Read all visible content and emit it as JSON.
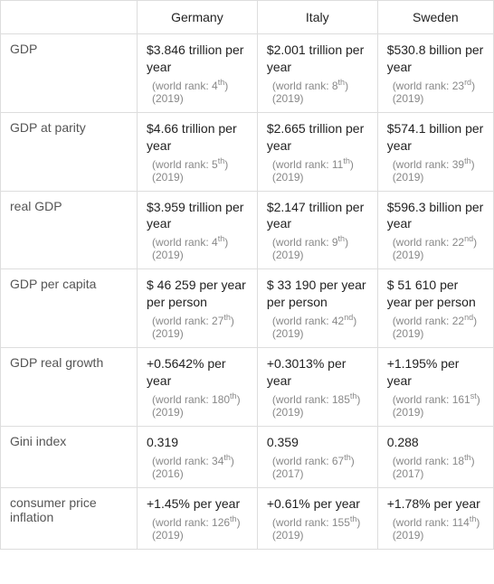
{
  "countries": [
    "Germany",
    "Italy",
    "Sweden"
  ],
  "rows": [
    {
      "label": "GDP",
      "cells": [
        {
          "value": "$3.846 trillion per year",
          "rank_prefix": "(world rank: 4",
          "rank_suffix": "th",
          "year": "(2019)"
        },
        {
          "value": "$2.001 trillion per year",
          "rank_prefix": "(world rank: 8",
          "rank_suffix": "th",
          "year": "(2019)"
        },
        {
          "value": "$530.8 billion per year",
          "rank_prefix": "(world rank: 23",
          "rank_suffix": "rd",
          "year": "(2019)"
        }
      ]
    },
    {
      "label": "GDP at parity",
      "cells": [
        {
          "value": "$4.66 trillion per year",
          "rank_prefix": "(world rank: 5",
          "rank_suffix": "th",
          "year": "(2019)"
        },
        {
          "value": "$2.665 trillion per year",
          "rank_prefix": "(world rank: 11",
          "rank_suffix": "th",
          "year": "(2019)"
        },
        {
          "value": "$574.1 billion per year",
          "rank_prefix": "(world rank: 39",
          "rank_suffix": "th",
          "year": "(2019)"
        }
      ]
    },
    {
      "label": "real GDP",
      "cells": [
        {
          "value": "$3.959 trillion per year",
          "rank_prefix": "(world rank: 4",
          "rank_suffix": "th",
          "year": "(2019)"
        },
        {
          "value": "$2.147 trillion per year",
          "rank_prefix": "(world rank: 9",
          "rank_suffix": "th",
          "year": "(2019)"
        },
        {
          "value": "$596.3 billion per year",
          "rank_prefix": "(world rank: 22",
          "rank_suffix": "nd",
          "year": "(2019)"
        }
      ]
    },
    {
      "label": "GDP per capita",
      "cells": [
        {
          "value": "$ 46 259 per year per person",
          "rank_prefix": "(world rank: 27",
          "rank_suffix": "th",
          "year": "(2019)"
        },
        {
          "value": "$ 33 190 per year per person",
          "rank_prefix": "(world rank: 42",
          "rank_suffix": "nd",
          "year": "(2019)"
        },
        {
          "value": "$ 51 610 per year per person",
          "rank_prefix": "(world rank: 22",
          "rank_suffix": "nd",
          "year": "(2019)"
        }
      ]
    },
    {
      "label": "GDP real growth",
      "cells": [
        {
          "value": "+0.5642% per year",
          "rank_prefix": "(world rank: 180",
          "rank_suffix": "th",
          "year": "(2019)"
        },
        {
          "value": "+0.3013% per year",
          "rank_prefix": "(world rank: 185",
          "rank_suffix": "th",
          "year": "(2019)"
        },
        {
          "value": "+1.195% per year",
          "rank_prefix": "(world rank: 161",
          "rank_suffix": "st",
          "year": "(2019)"
        }
      ]
    },
    {
      "label": "Gini index",
      "cells": [
        {
          "value": "0.319",
          "rank_prefix": "(world rank: 34",
          "rank_suffix": "th",
          "year": "(2016)"
        },
        {
          "value": "0.359",
          "rank_prefix": "(world rank: 67",
          "rank_suffix": "th",
          "year": "(2017)"
        },
        {
          "value": "0.288",
          "rank_prefix": "(world rank: 18",
          "rank_suffix": "th",
          "year": "(2017)"
        }
      ]
    },
    {
      "label": "consumer price inflation",
      "cells": [
        {
          "value": "+1.45% per year",
          "rank_prefix": "(world rank: 126",
          "rank_suffix": "th",
          "year": "(2019)"
        },
        {
          "value": "+0.61% per year",
          "rank_prefix": "(world rank: 155",
          "rank_suffix": "th",
          "year": "(2019)"
        },
        {
          "value": "+1.78% per year",
          "rank_prefix": "(world rank: 114",
          "rank_suffix": "th",
          "year": "(2019)"
        }
      ]
    }
  ]
}
